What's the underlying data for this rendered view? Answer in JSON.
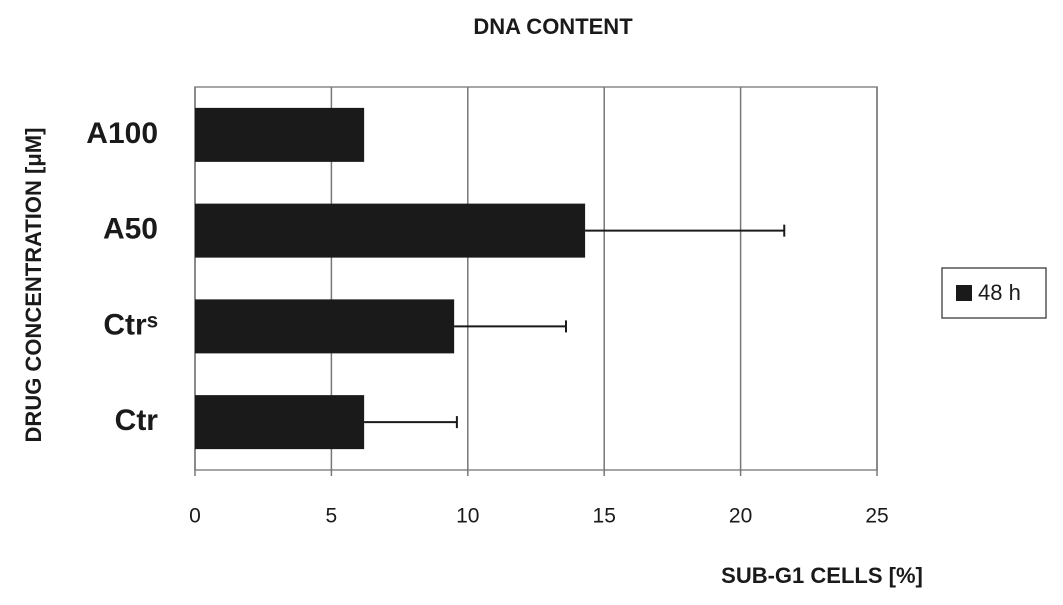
{
  "chart_data": {
    "type": "bar",
    "orientation": "horizontal",
    "title": "DNA CONTENT",
    "x_label": "SUB-G1 CELLS [%]",
    "y_label": "DRUG CONCENTRATION [μM]",
    "categories": [
      "A100",
      "A50",
      "Ctrˢ",
      "Ctr"
    ],
    "series": [
      {
        "name": "48 h",
        "color": "#1a1a1a",
        "values": [
          6.2,
          14.3,
          9.5,
          6.2
        ],
        "errors": [
          null,
          7.3,
          4.1,
          3.4
        ]
      }
    ],
    "xlim": [
      0,
      25
    ],
    "xticks": [
      0,
      5,
      10,
      15,
      20,
      25
    ],
    "grid": true,
    "legend": "right"
  }
}
